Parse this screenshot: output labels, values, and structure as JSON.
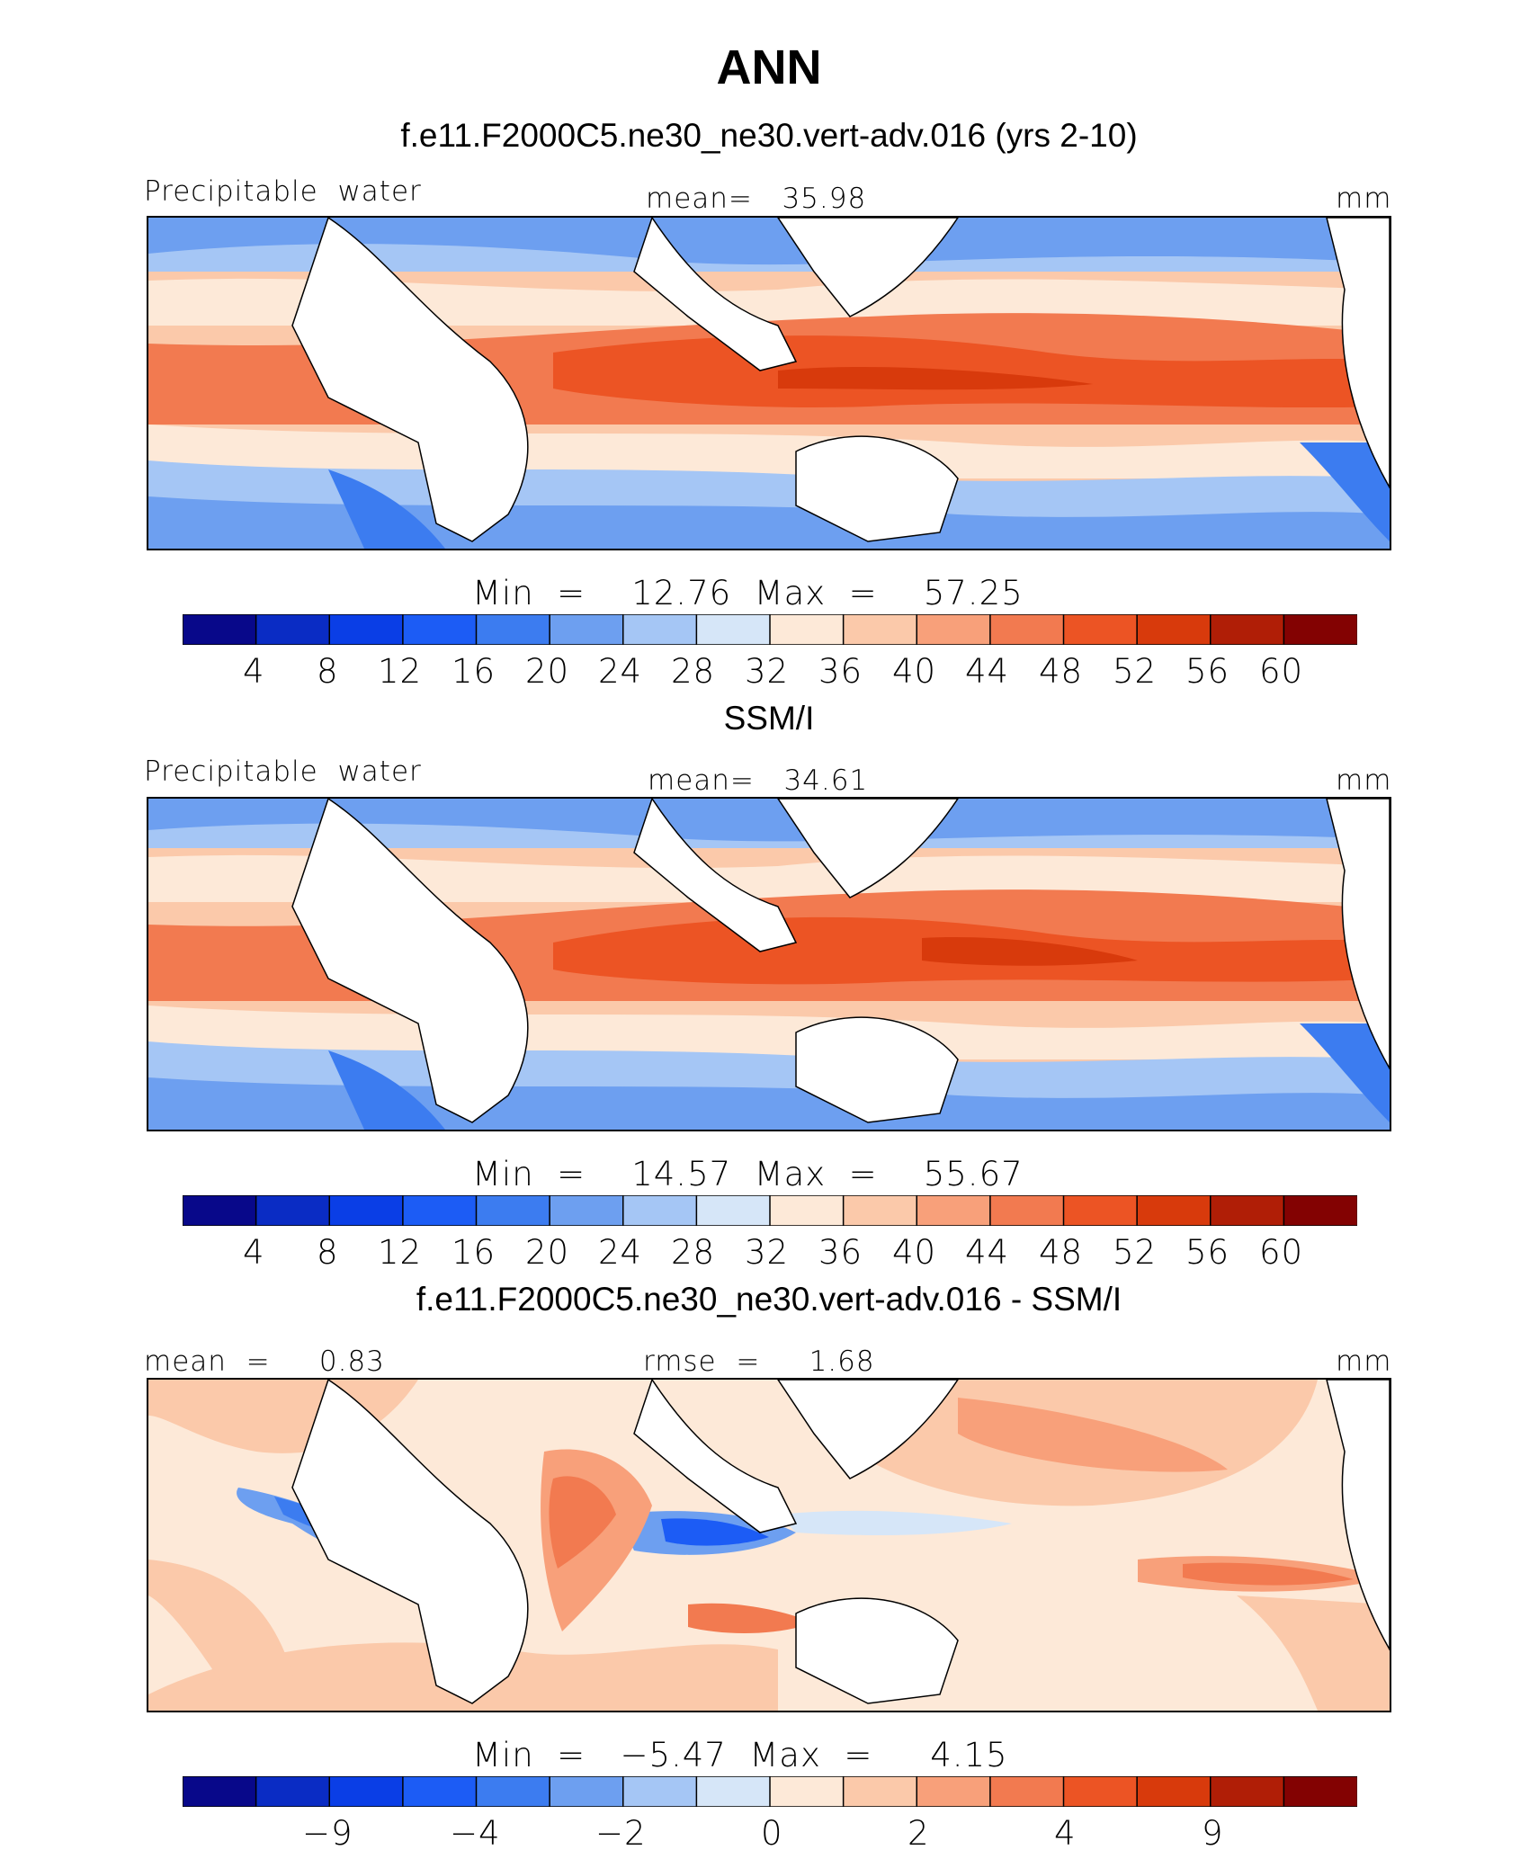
{
  "title": "ANN",
  "colors": [
    "#08088a",
    "#0a2cc4",
    "#0a3ee6",
    "#1c5cf5",
    "#3c7cf0",
    "#6d9ff0",
    "#a5c6f5",
    "#d6e6f8",
    "#fde9d8",
    "#fbc9aa",
    "#f8a07a",
    "#f27a50",
    "#ec5424",
    "#d83a0c",
    "#b01e06",
    "#830202"
  ],
  "panels": [
    {
      "subtitle": "f.e11.F2000C5.ne30_ne30.vert-adv.016 (yrs 2-10)",
      "left_label": "Precipitable  water",
      "center_label": "mean=   35.98",
      "units": "mm",
      "minmax": "Min  =    12.76  Max  =    57.25",
      "ticks": [
        "4",
        "8",
        "12",
        "16",
        "20",
        "24",
        "28",
        "32",
        "36",
        "40",
        "44",
        "48",
        "52",
        "56",
        "60"
      ]
    },
    {
      "subtitle": "SSM/I",
      "left_label": "Precipitable  water",
      "center_label": "mean=   34.61",
      "units": "mm",
      "minmax": "Min  =    14.57  Max  =    55.67",
      "ticks": [
        "4",
        "8",
        "12",
        "16",
        "20",
        "24",
        "28",
        "32",
        "36",
        "40",
        "44",
        "48",
        "52",
        "56",
        "60"
      ]
    },
    {
      "subtitle": "f.e11.F2000C5.ne30_ne30.vert-adv.016 - SSM/I",
      "left_label": "mean  =     0.83",
      "center_label": "rmse  =     1.68",
      "units": "mm",
      "minmax": "Min  =   −5.47  Max  =     4.15",
      "ticks": [
        "−9",
        "",
        "−4",
        "",
        "−2",
        "",
        "0",
        "",
        "2",
        "",
        "4",
        "",
        "9"
      ]
    }
  ]
}
